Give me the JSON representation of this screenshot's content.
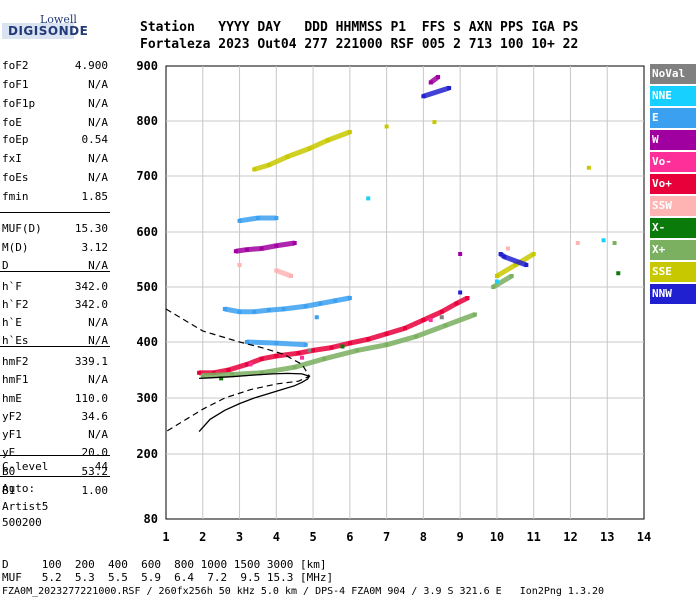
{
  "logo": {
    "top": "Lowell",
    "main": "DIGISONDE"
  },
  "header": {
    "line1": "Station   YYYY DAY   DDD HHMMSS P1  FFS S AXN PPS IGA PS",
    "line2": "Fortaleza 2023 Out04 277 221000 RSF 005 2 713 100 10+ 22"
  },
  "params": [
    {
      "k": "foF2",
      "v": "4.900"
    },
    {
      "k": "foF1",
      "v": "N/A"
    },
    {
      "k": "foF1p",
      "v": "N/A"
    },
    {
      "k": "foE",
      "v": "N/A"
    },
    {
      "k": "foEp",
      "v": "0.54"
    },
    {
      "k": "fxI",
      "v": "N/A"
    },
    {
      "k": "foEs",
      "v": "N/A"
    },
    {
      "k": "fmin",
      "v": "1.85"
    },
    {
      "k": "MUF(D)",
      "v": "15.30"
    },
    {
      "k": "M(D)",
      "v": "3.12"
    },
    {
      "k": "D",
      "v": "N/A"
    },
    {
      "k": "h`F",
      "v": "342.0"
    },
    {
      "k": "h`F2",
      "v": "342.0"
    },
    {
      "k": "h`E",
      "v": "N/A"
    },
    {
      "k": "h`Es",
      "v": "N/A"
    },
    {
      "k": "hmF2",
      "v": "339.1"
    },
    {
      "k": "hmF1",
      "v": "N/A"
    },
    {
      "k": "hmE",
      "v": "110.0"
    },
    {
      "k": "yF2",
      "v": "34.6"
    },
    {
      "k": "yF1",
      "v": "N/A"
    },
    {
      "k": "yE",
      "v": "20.0"
    },
    {
      "k": "B0",
      "v": "53.2"
    },
    {
      "k": "B1",
      "v": "1.00"
    },
    {
      "k": "C-level",
      "v": "44"
    }
  ],
  "autoscale": {
    "label": "Auto:",
    "software": "Artist5",
    "version": "500200"
  },
  "legend": [
    {
      "label": "NoVal",
      "bg": "#808080",
      "fg": "#ffffff"
    },
    {
      "label": "NNE",
      "bg": "#18d0ff",
      "fg": "#ffffff"
    },
    {
      "label": "E",
      "bg": "#3ca0f0",
      "fg": "#ffffff"
    },
    {
      "label": "W",
      "bg": "#a000a0",
      "fg": "#ffffff"
    },
    {
      "label": "Vo-",
      "bg": "#ff2f9a",
      "fg": "#ffffff"
    },
    {
      "label": "Vo+",
      "bg": "#e8003a",
      "fg": "#ffffff"
    },
    {
      "label": "SSW",
      "bg": "#ffb4b4",
      "fg": "#ffffff"
    },
    {
      "label": "X-",
      "bg": "#0a7a0a",
      "fg": "#ffffff"
    },
    {
      "label": "X+",
      "bg": "#7ab060",
      "fg": "#ffffff"
    },
    {
      "label": "SSE",
      "bg": "#c8c800",
      "fg": "#ffffff"
    },
    {
      "label": "NNW",
      "bg": "#2020d0",
      "fg": "#ffffff"
    }
  ],
  "bottom": {
    "d_line": "D     100  200  400  600  800 1000 1500 3000 [km]",
    "muf_line": "MUF   5.2  5.3  5.5  5.9  6.4  7.2  9.5 15.3 [MHz]",
    "file_line": "FZA0M_2023277221000.RSF / 260fx256h 50 kHz 5.0 km / DPS-4 FZA0M 904 / 3.9 S 321.6 E   Ion2Png 1.3.20"
  },
  "chart_data": {
    "type": "scatter",
    "xlim": [
      1,
      14
    ],
    "ylim": [
      80,
      900
    ],
    "x_ticks": [
      1,
      2,
      3,
      4,
      5,
      6,
      7,
      8,
      9,
      10,
      11,
      12,
      13,
      14
    ],
    "y_ticks": [
      80,
      200,
      300,
      400,
      500,
      600,
      700,
      800,
      900
    ],
    "grid": true,
    "legend_position": "right",
    "series": [
      {
        "name": "Vo+",
        "color": "#e8003a",
        "points": [
          [
            1.9,
            345
          ],
          [
            2.3,
            345
          ],
          [
            2.7,
            350
          ],
          [
            3.2,
            360
          ],
          [
            3.6,
            370
          ],
          [
            4.0,
            375
          ],
          [
            4.6,
            380
          ],
          [
            5.0,
            385
          ],
          [
            5.5,
            390
          ],
          [
            6.0,
            398
          ],
          [
            6.5,
            405
          ],
          [
            7.0,
            415
          ],
          [
            7.5,
            425
          ],
          [
            8.0,
            440
          ],
          [
            8.5,
            455
          ],
          [
            8.9,
            470
          ],
          [
            9.2,
            480
          ]
        ]
      },
      {
        "name": "E",
        "color": "#3ca0f0",
        "points": [
          [
            2.6,
            460
          ],
          [
            3.0,
            455
          ],
          [
            3.4,
            455
          ],
          [
            3.8,
            458
          ],
          [
            4.2,
            460
          ],
          [
            4.8,
            465
          ],
          [
            5.2,
            470
          ],
          [
            5.6,
            475
          ],
          [
            6.0,
            480
          ],
          [
            3.2,
            400
          ],
          [
            4.0,
            398
          ],
          [
            4.8,
            395
          ],
          [
            3.0,
            620
          ],
          [
            3.5,
            625
          ],
          [
            4.0,
            625
          ],
          [
            5.1,
            445
          ]
        ]
      },
      {
        "name": "W",
        "color": "#a000a0",
        "points": [
          [
            2.9,
            565
          ],
          [
            3.2,
            568
          ],
          [
            3.6,
            570
          ],
          [
            4.0,
            575
          ],
          [
            4.5,
            580
          ],
          [
            8.2,
            870
          ],
          [
            8.4,
            880
          ],
          [
            9.0,
            560
          ]
        ]
      },
      {
        "name": "SSE",
        "color": "#c8c800",
        "points": [
          [
            3.4,
            712
          ],
          [
            3.8,
            720
          ],
          [
            4.3,
            735
          ],
          [
            4.9,
            750
          ],
          [
            5.4,
            765
          ],
          [
            6.0,
            780
          ],
          [
            7.0,
            790
          ],
          [
            10.0,
            520
          ],
          [
            10.5,
            540
          ],
          [
            11.0,
            560
          ],
          [
            12.5,
            715
          ],
          [
            8.3,
            798
          ]
        ]
      },
      {
        "name": "X+",
        "color": "#7ab060",
        "points": [
          [
            2.0,
            340
          ],
          [
            2.8,
            342
          ],
          [
            3.6,
            345
          ],
          [
            4.5,
            355
          ],
          [
            5.3,
            370
          ],
          [
            6.2,
            385
          ],
          [
            7.0,
            395
          ],
          [
            7.8,
            410
          ],
          [
            8.6,
            430
          ],
          [
            9.4,
            450
          ],
          [
            9.9,
            500
          ],
          [
            10.4,
            520
          ],
          [
            13.2,
            580
          ]
        ]
      },
      {
        "name": "NNW",
        "color": "#2020d0",
        "points": [
          [
            9.0,
            490
          ],
          [
            10.1,
            560
          ],
          [
            10.2,
            555
          ],
          [
            10.8,
            540
          ],
          [
            8.7,
            860
          ],
          [
            8.0,
            845
          ]
        ]
      },
      {
        "name": "SSW",
        "color": "#ffb4b4",
        "points": [
          [
            3.0,
            540
          ],
          [
            4.4,
            520
          ],
          [
            4.0,
            530
          ],
          [
            10.3,
            570
          ],
          [
            12.2,
            580
          ]
        ]
      },
      {
        "name": "Vo-",
        "color": "#ff2f9a",
        "points": [
          [
            3.3,
            360
          ],
          [
            4.7,
            372
          ],
          [
            8.2,
            440
          ]
        ]
      },
      {
        "name": "X-",
        "color": "#0a7a0a",
        "points": [
          [
            2.5,
            335
          ],
          [
            5.8,
            392
          ],
          [
            13.3,
            525
          ]
        ]
      },
      {
        "name": "NNE",
        "color": "#18d0ff",
        "points": [
          [
            10.0,
            510
          ],
          [
            12.9,
            585
          ],
          [
            6.5,
            660
          ]
        ]
      },
      {
        "name": "NoVal",
        "color": "#808080",
        "points": [
          [
            4.9,
            385
          ],
          [
            8.5,
            445
          ]
        ]
      }
    ],
    "profile_solid": [
      [
        1.9,
        240
      ],
      [
        2.2,
        262
      ],
      [
        2.6,
        278
      ],
      [
        3.0,
        290
      ],
      [
        3.4,
        300
      ],
      [
        3.8,
        308
      ],
      [
        4.2,
        316
      ],
      [
        4.5,
        322
      ],
      [
        4.7,
        328
      ],
      [
        4.85,
        334
      ],
      [
        4.9,
        339
      ],
      [
        4.7,
        343
      ],
      [
        4.3,
        344
      ],
      [
        3.9,
        343
      ],
      [
        3.4,
        341
      ],
      [
        2.8,
        338
      ],
      [
        2.2,
        336
      ],
      [
        1.9,
        335
      ]
    ],
    "profile_dashed": [
      [
        1.0,
        460
      ],
      [
        1.5,
        440
      ],
      [
        2.0,
        420
      ],
      [
        2.5,
        410
      ],
      [
        3.0,
        400
      ],
      [
        3.6,
        390
      ],
      [
        4.2,
        378
      ],
      [
        4.7,
        360
      ],
      [
        4.9,
        339
      ],
      [
        4.6,
        330
      ],
      [
        4.0,
        325
      ],
      [
        3.3,
        315
      ],
      [
        2.6,
        300
      ],
      [
        2.0,
        280
      ],
      [
        1.5,
        260
      ],
      [
        1.0,
        240
      ]
    ]
  }
}
